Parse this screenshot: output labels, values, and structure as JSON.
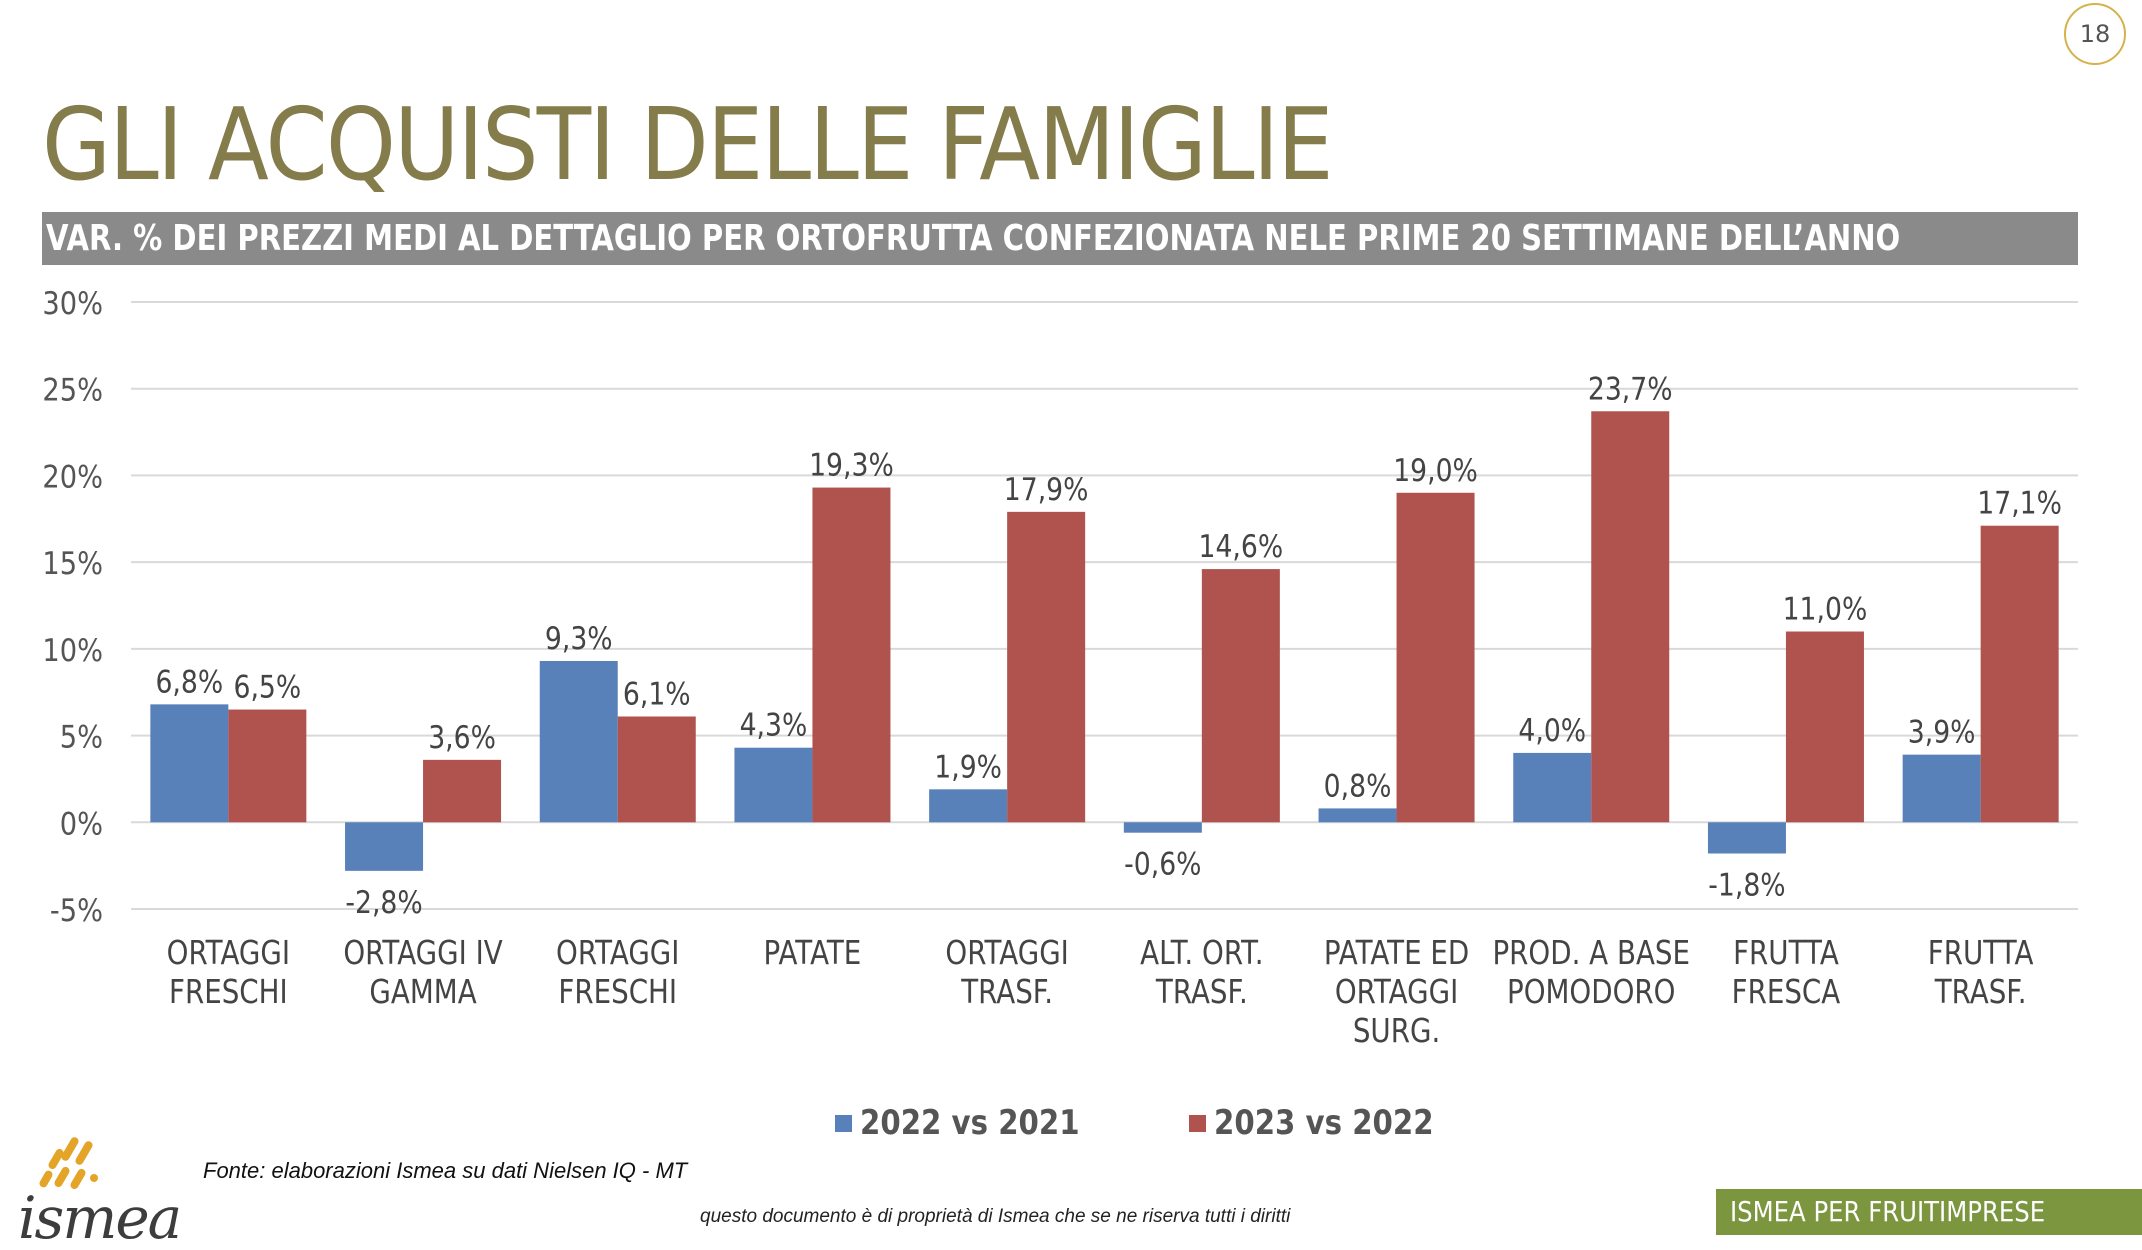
{
  "page_number": "18",
  "title": "GLI ACQUISTI DELLE FAMIGLIE",
  "subtitle": "VAR. % DEI PREZZI MEDI AL DETTAGLIO PER ORTOFRUTTA CONFEZIONATA NELE PRIME 20 SETTIMANE DELL’ANNO",
  "source_note": "Fonte: elaborazioni Ismea su dati Nielsen IQ - MT",
  "disclaimer": "questo documento è di proprietà di Ismea che se ne riserva tutti i diritti",
  "footer_badge": "ISMEA PER FRUITIMPRESE",
  "logo_text": "ismea",
  "colors": {
    "title": "#857c4c",
    "subtitle_bar": "#8a8a8a",
    "series_2022": "#5880b9",
    "series_2023": "#b0524e",
    "footer": "#7c9640",
    "logo": "#e4a428"
  },
  "chart_data": {
    "type": "bar",
    "categories": [
      [
        "ORTAGGI",
        "FRESCHI"
      ],
      [
        "ORTAGGI IV",
        "GAMMA"
      ],
      [
        "ORTAGGI",
        "FRESCHI"
      ],
      [
        "PATATE"
      ],
      [
        "ORTAGGI",
        "TRASF."
      ],
      [
        "ALT. ORT.",
        "TRASF."
      ],
      [
        "PATATE ED",
        "ORTAGGI",
        "SURG."
      ],
      [
        "PROD. A BASE",
        "POMODORO"
      ],
      [
        "FRUTTA",
        "FRESCA"
      ],
      [
        "FRUTTA",
        "TRASF."
      ]
    ],
    "series": [
      {
        "name": "2022 vs 2021",
        "color": "#5880b9",
        "values": [
          6.8,
          -2.8,
          9.3,
          4.3,
          1.9,
          -0.6,
          0.8,
          4.0,
          -1.8,
          3.9
        ],
        "labels": [
          "6,8%",
          "-2,8%",
          "9,3%",
          "4,3%",
          "1,9%",
          "-0,6%",
          "0,8%",
          "4,0%",
          "-1,8%",
          "3,9%"
        ]
      },
      {
        "name": "2023 vs 2022",
        "color": "#b0524e",
        "values": [
          6.5,
          3.6,
          6.1,
          19.3,
          17.9,
          14.6,
          19.0,
          23.7,
          11.0,
          17.1
        ],
        "labels": [
          "6,5%",
          "3,6%",
          "6,1%",
          "19,3%",
          "17,9%",
          "14,6%",
          "19,0%",
          "23,7%",
          "11,0%",
          "17,1%"
        ]
      }
    ],
    "yticks": [
      "-5%",
      "0%",
      "5%",
      "10%",
      "15%",
      "20%",
      "25%",
      "30%"
    ],
    "ytick_values": [
      -5,
      0,
      5,
      10,
      15,
      20,
      25,
      30
    ],
    "ylim": [
      -5,
      30
    ],
    "grid": true,
    "legend_position": "bottom"
  }
}
